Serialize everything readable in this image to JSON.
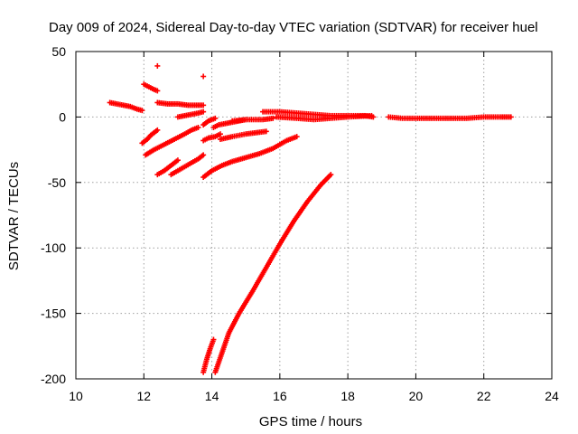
{
  "chart_data": {
    "type": "scatter",
    "title": "Day 009 of 2024, Sidereal Day-to-day VTEC variation (SDTVAR) for receiver huel",
    "xlabel": "GPS time / hours",
    "ylabel": "SDTVAR / TECUs",
    "xlim": [
      10,
      24
    ],
    "ylim": [
      -200,
      50
    ],
    "x_ticks": [
      10,
      12,
      14,
      16,
      18,
      20,
      22,
      24
    ],
    "y_ticks": [
      -200,
      -150,
      -100,
      -50,
      0,
      50
    ],
    "grid": true,
    "legend": "none",
    "marker": "plus",
    "color": "#ff0000",
    "series": [
      {
        "x": [
          11.0,
          11.2,
          11.4,
          11.6,
          11.8,
          11.95
        ],
        "y": [
          11,
          10,
          9,
          8,
          6,
          5
        ]
      },
      {
        "x": [
          12.0,
          12.15,
          12.3,
          12.4
        ],
        "y": [
          25,
          23,
          21,
          20
        ]
      },
      {
        "x": [
          12.4,
          12.7,
          13.0,
          13.3,
          13.6,
          13.75
        ],
        "y": [
          11,
          10,
          10,
          9,
          9,
          9
        ]
      },
      {
        "x": [
          13.0,
          13.2,
          13.4,
          13.6,
          13.75
        ],
        "y": [
          0,
          1,
          2,
          3,
          4
        ]
      },
      {
        "x": [
          12.4
        ],
        "y": [
          39
        ]
      },
      {
        "x": [
          13.75
        ],
        "y": [
          31
        ]
      },
      {
        "x": [
          11.95,
          12.1,
          12.2,
          12.4
        ],
        "y": [
          -20,
          -17,
          -14,
          -10
        ]
      },
      {
        "x": [
          12.05,
          12.3,
          12.6,
          12.9,
          13.2,
          13.4,
          13.6
        ],
        "y": [
          -29,
          -25,
          -21,
          -17,
          -13,
          -10,
          -8
        ]
      },
      {
        "x": [
          12.4,
          12.6,
          12.8,
          13.0
        ],
        "y": [
          -44,
          -41,
          -37,
          -33
        ]
      },
      {
        "x": [
          12.8,
          13.0,
          13.2,
          13.4,
          13.6,
          13.75
        ],
        "y": [
          -44,
          -41,
          -38,
          -35,
          -32,
          -29
        ]
      },
      {
        "x": [
          13.75,
          13.9,
          14.1,
          14.25
        ],
        "y": [
          -18,
          -16,
          -15,
          -13
        ]
      },
      {
        "x": [
          14.05,
          14.2,
          14.4,
          14.6,
          14.8,
          15.0
        ],
        "y": [
          -8,
          -6,
          -5,
          -4,
          -3,
          -2
        ]
      },
      {
        "x": [
          13.75,
          13.9,
          14.1
        ],
        "y": [
          -6,
          -3,
          -1
        ]
      },
      {
        "x": [
          14.25,
          14.6,
          15.0,
          15.3,
          15.6
        ],
        "y": [
          -17,
          -15,
          -13,
          -12,
          -11
        ]
      },
      {
        "x": [
          13.75,
          14.0,
          14.3,
          14.6,
          15.0,
          15.4,
          15.8,
          16.2,
          16.5
        ],
        "y": [
          -46,
          -41,
          -37,
          -34,
          -31,
          -28,
          -24,
          -18,
          -15
        ]
      },
      {
        "x": [
          14.6,
          15.0,
          15.5,
          15.8
        ],
        "y": [
          -3,
          -2,
          -2,
          -1
        ]
      },
      {
        "x": [
          15.5,
          16.0,
          16.5,
          17.0,
          17.5,
          18.0,
          18.5,
          18.75
        ],
        "y": [
          4,
          4,
          3,
          2,
          1,
          1,
          1,
          0
        ]
      },
      {
        "x": [
          15.9,
          16.5,
          17.0,
          17.5,
          18.0,
          18.7
        ],
        "y": [
          0,
          -1,
          -2,
          -1,
          0,
          1
        ]
      },
      {
        "x": [
          19.2,
          19.6,
          20.0,
          20.5,
          21.0,
          21.5,
          22.0,
          22.5,
          22.8
        ],
        "y": [
          0,
          -1,
          -1,
          -1,
          -1,
          -1,
          0,
          0,
          0
        ]
      },
      {
        "x": [
          13.75,
          13.85,
          13.95,
          14.05
        ],
        "y": [
          -195,
          -185,
          -177,
          -170
        ]
      },
      {
        "x": [
          14.1,
          14.3,
          14.5,
          14.8,
          15.2,
          15.6,
          16.0,
          16.4,
          16.8,
          17.2,
          17.5
        ],
        "y": [
          -195,
          -180,
          -165,
          -150,
          -133,
          -115,
          -97,
          -80,
          -65,
          -52,
          -44
        ]
      }
    ]
  }
}
